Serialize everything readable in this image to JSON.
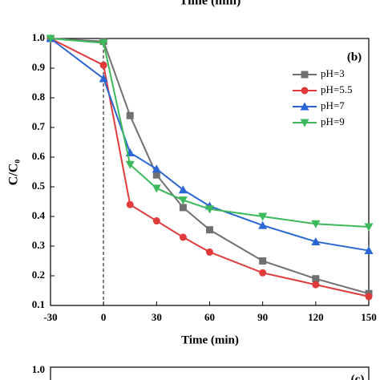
{
  "top_fragment": "Time (min)",
  "chart_data": {
    "type": "line",
    "panel_label": "(b)",
    "x_label": "Time (min)",
    "y_label": "C/C₀",
    "x": [
      -30,
      0,
      15,
      30,
      45,
      60,
      90,
      120,
      150
    ],
    "xlim": [
      -30,
      150
    ],
    "xticks": [
      -30,
      0,
      30,
      60,
      90,
      120,
      150
    ],
    "ylim": [
      0.1,
      1.0
    ],
    "yticks": [
      0.1,
      0.2,
      0.3,
      0.4,
      0.5,
      0.6,
      0.7,
      0.8,
      0.9,
      {
        "value": 1,
        "label": "1.0"
      }
    ],
    "legend": "upper right",
    "series": [
      {
        "name": "pH=3",
        "color": "#707070",
        "marker": "square",
        "values": [
          1.0,
          0.99,
          0.74,
          0.54,
          0.43,
          0.355,
          0.25,
          0.19,
          0.14
        ]
      },
      {
        "name": "pH=5.5",
        "color": "#e03a3a",
        "marker": "circle",
        "values": [
          1.0,
          0.91,
          0.44,
          0.385,
          0.33,
          0.28,
          0.21,
          0.17,
          0.13
        ]
      },
      {
        "name": "pH=7",
        "color": "#2a66d6",
        "marker": "triangle-up",
        "values": [
          1.0,
          0.865,
          0.615,
          0.56,
          0.49,
          0.435,
          0.37,
          0.315,
          0.285
        ]
      },
      {
        "name": "pH=9",
        "color": "#3cb95a",
        "marker": "triangle-down",
        "values": [
          1.0,
          0.985,
          0.575,
          0.495,
          0.455,
          0.425,
          0.4,
          0.375,
          0.365
        ]
      }
    ]
  },
  "bottom_fragment": {
    "ytick": "1.0",
    "panel_label": "(c)"
  }
}
